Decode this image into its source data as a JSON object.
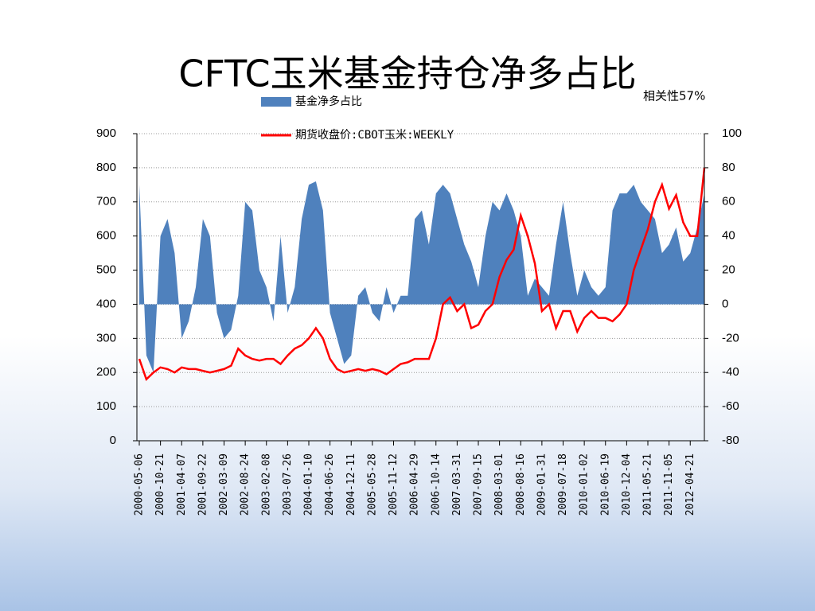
{
  "chart_data": {
    "type": "area_line",
    "title": "CFTC玉米基金持仓净多占比",
    "annotation": "相关性57%",
    "categories": [
      "2000-05-06",
      null,
      null,
      "2000-10-21",
      null,
      null,
      "2001-04-07",
      null,
      null,
      "2001-09-22",
      null,
      null,
      "2002-03-09",
      null,
      null,
      "2002-08-24",
      null,
      null,
      "2003-02-08",
      null,
      null,
      "2003-07-26",
      null,
      null,
      "2004-01-10",
      null,
      null,
      "2004-06-26",
      null,
      null,
      "2004-12-11",
      null,
      null,
      "2005-05-28",
      null,
      null,
      "2005-11-12",
      null,
      null,
      "2006-04-29",
      null,
      null,
      "2006-10-14",
      null,
      null,
      "2007-03-31",
      null,
      null,
      "2007-09-15",
      null,
      null,
      "2008-03-01",
      null,
      null,
      "2008-08-16",
      null,
      null,
      "2009-01-31",
      null,
      null,
      "2009-07-18",
      null,
      null,
      "2010-01-02",
      null,
      null,
      "2010-06-19",
      null,
      null,
      "2010-12-04",
      null,
      null,
      "2011-05-21",
      null,
      null,
      "2011-11-05",
      null,
      null,
      "2012-04-21",
      null,
      null
    ],
    "series": [
      {
        "name": "基金净多占比",
        "color": "#4f81bd",
        "axis": "y2",
        "kind": "area",
        "values": [
          70,
          -30,
          -40,
          40,
          50,
          30,
          -20,
          -10,
          10,
          50,
          40,
          -5,
          -20,
          -15,
          5,
          60,
          55,
          20,
          10,
          -10,
          40,
          -5,
          10,
          50,
          70,
          72,
          55,
          -5,
          -20,
          -35,
          -30,
          5,
          10,
          -5,
          -10,
          10,
          -5,
          5,
          5,
          50,
          55,
          35,
          65,
          70,
          65,
          50,
          35,
          25,
          10,
          40,
          60,
          55,
          65,
          55,
          40,
          5,
          15,
          10,
          5,
          35,
          60,
          30,
          5,
          20,
          10,
          5,
          10,
          55,
          65,
          65,
          70,
          60,
          55,
          50,
          30,
          35,
          45,
          25,
          30,
          45,
          65
        ]
      },
      {
        "name": "期货收盘价:CBOT玉米:WEEKLY",
        "color": "#ff0000",
        "axis": "y",
        "kind": "line",
        "values": [
          240,
          180,
          200,
          215,
          210,
          200,
          215,
          210,
          210,
          205,
          200,
          205,
          210,
          220,
          270,
          250,
          240,
          235,
          240,
          240,
          225,
          250,
          270,
          280,
          300,
          330,
          300,
          240,
          210,
          200,
          205,
          210,
          205,
          210,
          205,
          195,
          210,
          225,
          230,
          240,
          240,
          240,
          300,
          400,
          420,
          380,
          400,
          330,
          340,
          380,
          400,
          480,
          530,
          560,
          660,
          600,
          520,
          380,
          400,
          330,
          380,
          380,
          320,
          360,
          380,
          360,
          360,
          350,
          370,
          400,
          500,
          560,
          620,
          700,
          750,
          680,
          720,
          640,
          600,
          600,
          800
        ]
      }
    ],
    "ylim": [
      0,
      900
    ],
    "yticks": [
      0,
      100,
      200,
      300,
      400,
      500,
      600,
      700,
      800,
      900
    ],
    "y2lim": [
      -80,
      100
    ],
    "y2ticks": [
      -80,
      -60,
      -40,
      -20,
      0,
      20,
      40,
      60,
      80,
      100
    ],
    "y2_negative_color": "#ff0000",
    "grid": true
  }
}
